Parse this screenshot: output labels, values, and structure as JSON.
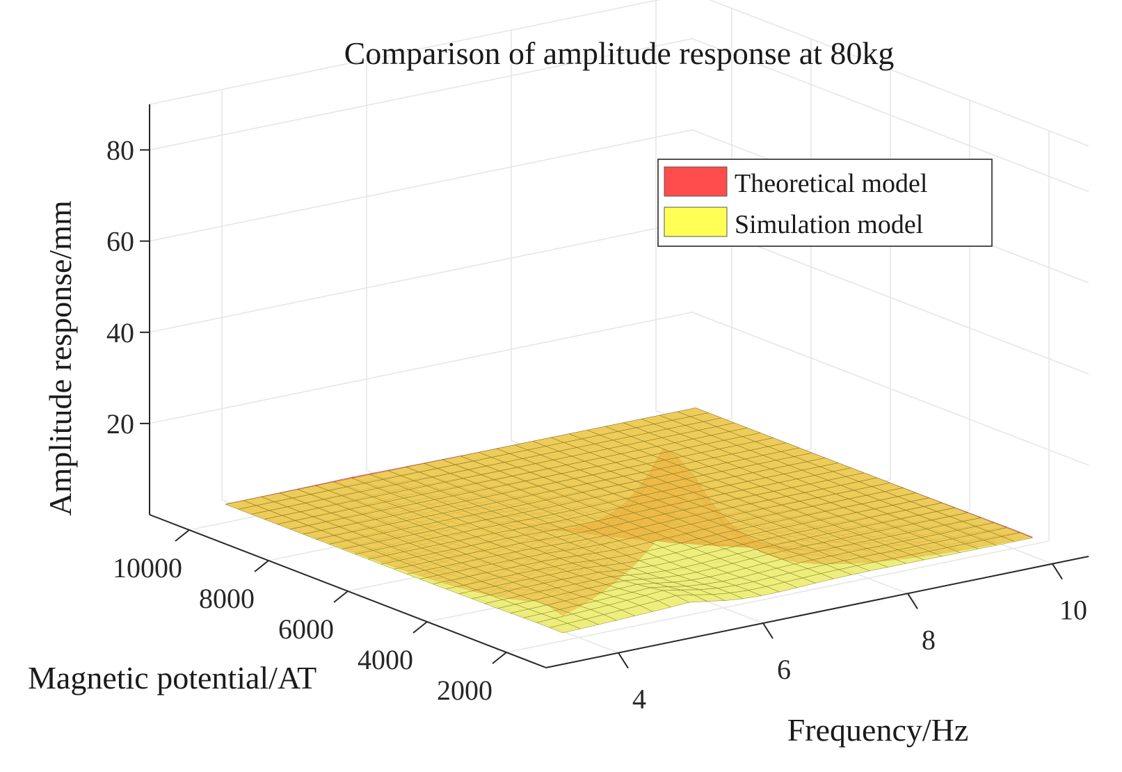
{
  "chart_data": {
    "type": "surface",
    "title": "Comparison of amplitude response at 80kg",
    "xlabel": "Frequency/Hz",
    "ylabel": "Magnetic potential/AT",
    "zlabel": "Amplitude response/mm",
    "xticks": [
      "4",
      "6",
      "8",
      "10"
    ],
    "yticks": [
      "2000",
      "4000",
      "6000",
      "8000",
      "10000"
    ],
    "zticks": [
      "20",
      "40",
      "60",
      "80"
    ],
    "xlim": [
      3,
      10.5
    ],
    "ylim": [
      1000,
      11000
    ],
    "zlim": [
      0,
      90
    ],
    "grid": true,
    "legend_position": "top-right",
    "series": [
      {
        "name": "Theoretical model",
        "color": "#ff4d4d",
        "peak": {
          "frequency": 5.3,
          "magnetic_potential": 2000,
          "amplitude": 43
        },
        "baseline_amplitude": 4
      },
      {
        "name": "Simulation model",
        "color": "#ffff55",
        "peak": {
          "frequency": 5.3,
          "magnetic_potential": 2000,
          "amplitude": 7
        },
        "baseline_amplitude": 4
      }
    ]
  }
}
